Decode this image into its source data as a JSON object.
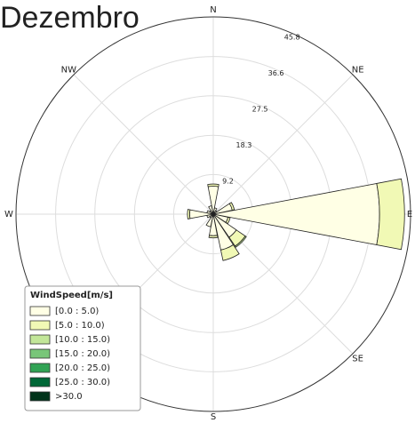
{
  "chart_data": {
    "type": "windrose",
    "title": "Dezembro",
    "legend_title": "WindSpeed[m/s]",
    "categories": [
      "N",
      null,
      "NE",
      null,
      "E",
      null,
      "SE",
      null,
      "S",
      null,
      null,
      null,
      "W",
      null,
      "NW",
      null
    ],
    "ylim": [
      0,
      45.8
    ],
    "yticks": [
      9.2,
      18.3,
      27.5,
      36.6,
      45.8
    ],
    "grid": true,
    "legend": "lower left",
    "series": [
      {
        "name": "[0.0 : 5.0)",
        "color": "#ffffe5",
        "values": [
          6.5,
          1.5,
          1.0,
          4.5,
          38.6,
          3.5,
          6.5,
          8.5,
          5.0,
          3.0,
          1.0,
          1.5,
          5.5,
          1.5,
          1.0,
          2.0
        ]
      },
      {
        "name": "[5.0 : 10.0)",
        "color": "#f1f9b5",
        "values": [
          0.5,
          0,
          0,
          0.5,
          5.8,
          0.5,
          2.5,
          2.5,
          0.5,
          0,
          0,
          0,
          0.5,
          0,
          0,
          0
        ]
      },
      {
        "name": "[10.0 : 15.0)",
        "color": "#c2e699",
        "values": [
          0,
          0,
          0,
          0,
          0,
          0,
          0.3,
          0,
          0,
          0,
          0,
          0,
          0,
          0,
          0,
          0
        ]
      },
      {
        "name": "[15.0 : 20.0)",
        "color": "#78c679",
        "values": [
          0,
          0,
          0,
          0,
          0,
          0,
          0,
          0,
          0,
          0,
          0,
          0,
          0,
          0,
          0,
          0
        ]
      },
      {
        "name": "[20.0 : 25.0)",
        "color": "#31a354",
        "values": [
          0,
          0,
          0,
          0,
          0,
          0,
          0,
          0,
          0,
          0,
          0,
          0,
          0,
          0,
          0,
          0
        ]
      },
      {
        "name": "[25.0 : 30.0)",
        "color": "#006837",
        "values": [
          0,
          0,
          0,
          0,
          0,
          0,
          0,
          0,
          0,
          0,
          0,
          0,
          0,
          0,
          0,
          0
        ]
      },
      {
        "name": ">30.0",
        "color": "#00331a",
        "values": [
          0,
          0,
          0,
          0,
          0,
          0,
          0,
          0,
          0,
          0,
          0,
          0,
          0,
          0,
          0,
          0
        ]
      }
    ]
  }
}
